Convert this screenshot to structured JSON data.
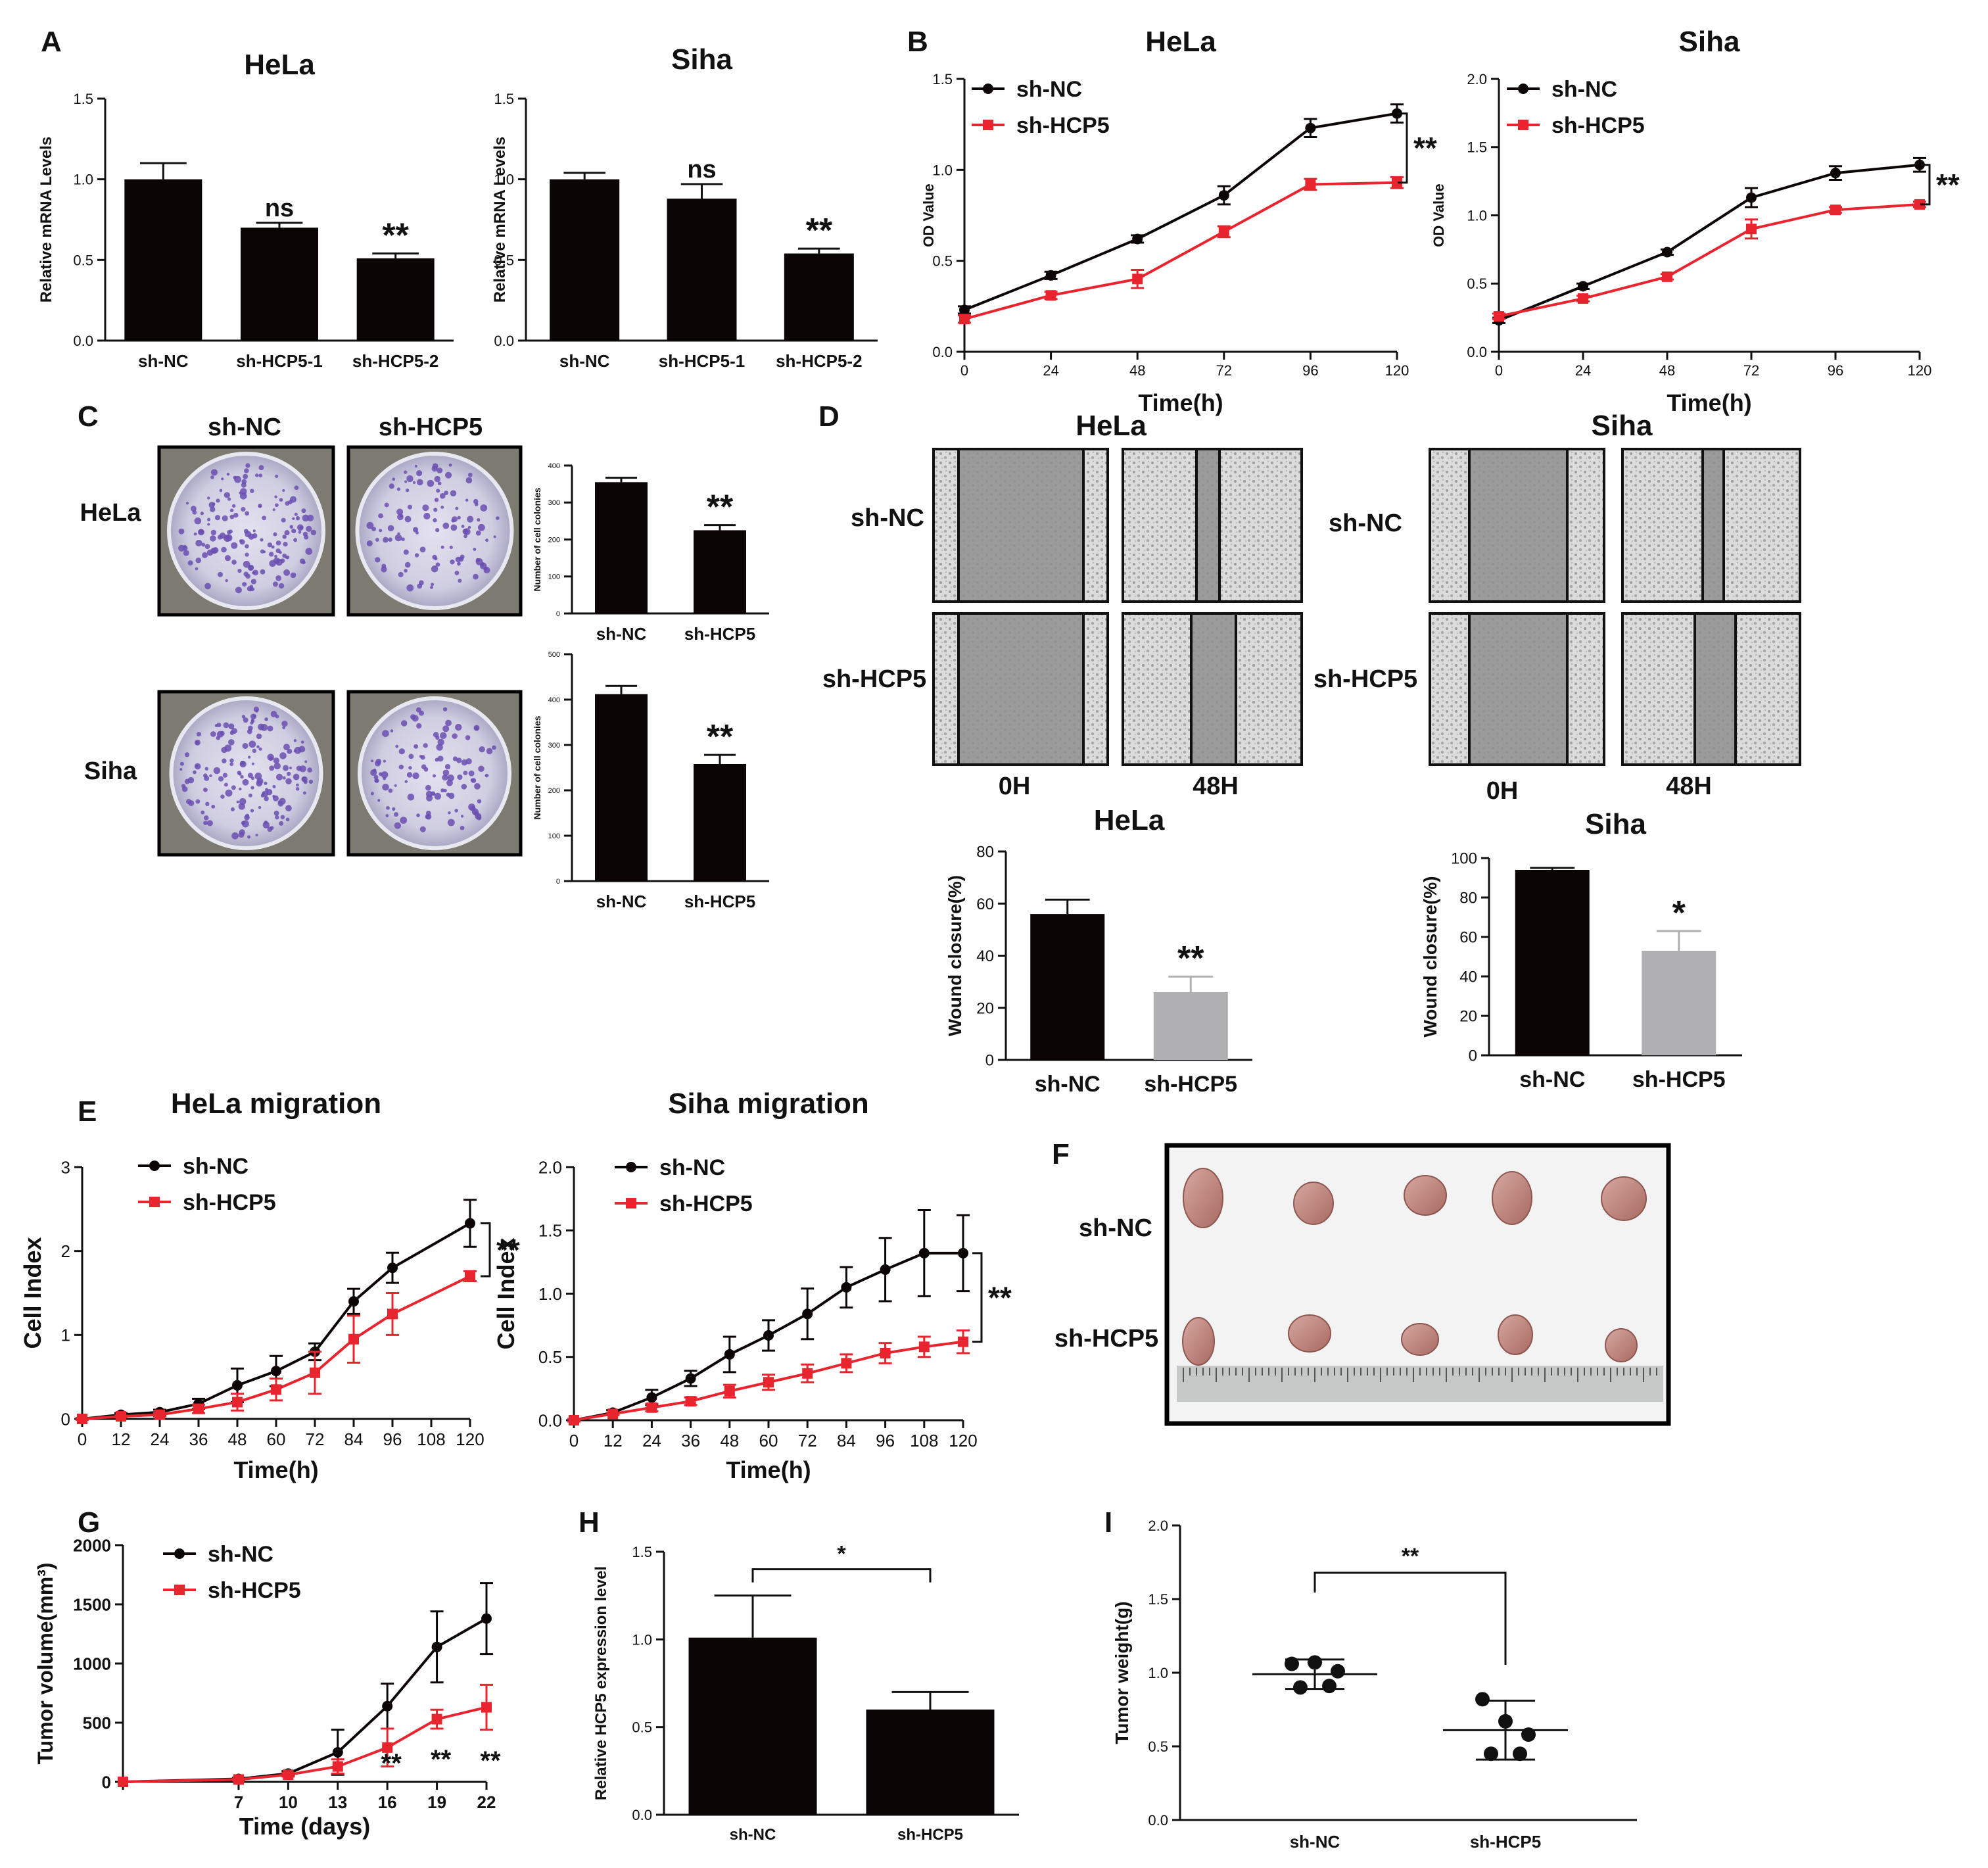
{
  "colors": {
    "black": "#0b0505",
    "red": "#e8242e",
    "gray": "#b0b0b2",
    "purple": "#6a4fb0",
    "dish": "#d9dae6",
    "tissue": "#c08a84"
  },
  "panel_labels": [
    "A",
    "B",
    "C",
    "D",
    "E",
    "F",
    "G",
    "H",
    "I"
  ],
  "chart_data": [
    {
      "id": "A1",
      "type": "bar",
      "title": "HeLa",
      "ylabel": "Relative mRNA Levels",
      "ylim": [
        0,
        1.5
      ],
      "yticks": [
        "0.0",
        "0.5",
        "1.0",
        "1.5"
      ],
      "categories": [
        "sh-NC",
        "sh-HCP5-1",
        "sh-HCP5-2"
      ],
      "values": [
        1.0,
        0.7,
        0.51
      ],
      "errors": [
        0.1,
        0.03,
        0.03
      ],
      "sig": [
        "",
        "ns",
        "**"
      ]
    },
    {
      "id": "A2",
      "type": "bar",
      "title": "Siha",
      "ylabel": "Relative mRNA Levels",
      "ylim": [
        0,
        1.5
      ],
      "yticks": [
        "0.0",
        "0.5",
        "1.0",
        "1.5"
      ],
      "categories": [
        "sh-NC",
        "sh-HCP5-1",
        "sh-HCP5-2"
      ],
      "values": [
        1.0,
        0.88,
        0.54
      ],
      "errors": [
        0.04,
        0.09,
        0.03
      ],
      "sig": [
        "",
        "ns",
        "**"
      ]
    },
    {
      "id": "B1",
      "type": "line",
      "title": "HeLa",
      "ylabel": "OD Value",
      "xlabel": "Time(h)",
      "ylim": [
        0,
        1.5
      ],
      "yticks": [
        "0.0",
        "0.5",
        "1.0",
        "1.5"
      ],
      "x": [
        0,
        24,
        48,
        72,
        96,
        120
      ],
      "xticks": [
        "0",
        "24",
        "48",
        "72",
        "96",
        "120"
      ],
      "bracket": "**",
      "legend": [
        "sh-NC",
        "sh-HCP5"
      ],
      "series": [
        {
          "name": "sh-NC",
          "values": [
            0.23,
            0.42,
            0.62,
            0.86,
            1.23,
            1.31
          ],
          "errors": [
            0.02,
            0.02,
            0.02,
            0.05,
            0.05,
            0.05
          ]
        },
        {
          "name": "sh-HCP5",
          "values": [
            0.18,
            0.31,
            0.4,
            0.66,
            0.92,
            0.93
          ],
          "errors": [
            0.02,
            0.02,
            0.05,
            0.03,
            0.03,
            0.03
          ]
        }
      ]
    },
    {
      "id": "B2",
      "type": "line",
      "title": "Siha",
      "ylabel": "OD Value",
      "xlabel": "Time(h)",
      "ylim": [
        0,
        2.0
      ],
      "yticks": [
        "0.0",
        "0.5",
        "1.0",
        "1.5",
        "2.0"
      ],
      "x": [
        0,
        24,
        48,
        72,
        96,
        120
      ],
      "xticks": [
        "0",
        "24",
        "48",
        "72",
        "96",
        "120"
      ],
      "bracket": "**",
      "legend": [
        "sh-NC",
        "sh-HCP5"
      ],
      "series": [
        {
          "name": "sh-NC",
          "values": [
            0.23,
            0.48,
            0.73,
            1.13,
            1.31,
            1.37
          ],
          "errors": [
            0.02,
            0.02,
            0.02,
            0.07,
            0.05,
            0.05
          ]
        },
        {
          "name": "sh-HCP5",
          "values": [
            0.26,
            0.39,
            0.55,
            0.9,
            1.04,
            1.08
          ],
          "errors": [
            0.02,
            0.02,
            0.02,
            0.07,
            0.02,
            0.02
          ]
        }
      ]
    },
    {
      "id": "C1",
      "type": "bar",
      "ylabel": "Number of cell colonies",
      "ylim": [
        0,
        400
      ],
      "yticks": [
        "0",
        "100",
        "200",
        "300",
        "400"
      ],
      "categories": [
        "sh-NC",
        "sh-HCP5"
      ],
      "values": [
        355,
        225
      ],
      "errors": [
        12,
        14
      ],
      "sig": [
        "",
        "**"
      ]
    },
    {
      "id": "C2",
      "type": "bar",
      "ylabel": "Number of cell colonies",
      "ylim": [
        0,
        500
      ],
      "yticks": [
        "0",
        "100",
        "200",
        "300",
        "400",
        "500"
      ],
      "categories": [
        "sh-NC",
        "sh-HCP5"
      ],
      "values": [
        412,
        258
      ],
      "errors": [
        18,
        20
      ],
      "sig": [
        "",
        "**"
      ]
    },
    {
      "id": "D1",
      "type": "bar",
      "title": "HeLa",
      "ylabel": "Wound closure(%)",
      "ylim": [
        0,
        80
      ],
      "yticks": [
        "0",
        "20",
        "40",
        "60",
        "80"
      ],
      "categories": [
        "sh-NC",
        "sh-HCP5"
      ],
      "values": [
        56,
        26
      ],
      "errors": [
        5.5,
        6
      ],
      "sig": [
        "",
        "**"
      ]
    },
    {
      "id": "D2",
      "type": "bar",
      "title": "Siha",
      "ylabel": "Wound closure(%)",
      "ylim": [
        0,
        100
      ],
      "yticks": [
        "0",
        "20",
        "40",
        "60",
        "80",
        "100"
      ],
      "categories": [
        "sh-NC",
        "sh-HCP5"
      ],
      "values": [
        94,
        53
      ],
      "errors": [
        1,
        10
      ],
      "sig": [
        "",
        "*"
      ]
    },
    {
      "id": "E1",
      "type": "line",
      "title": "HeLa migration",
      "ylabel": "Cell Index",
      "xlabel": "Time(h)",
      "ylim": [
        0,
        3
      ],
      "yticks": [
        "0",
        "1",
        "2",
        "3"
      ],
      "x": [
        0,
        12,
        24,
        36,
        48,
        60,
        72,
        84,
        96,
        108,
        120
      ],
      "xticks": [
        "0",
        "12",
        "24",
        "36",
        "48",
        "60",
        "72",
        "84",
        "96",
        "108",
        "120"
      ],
      "bracket": "**",
      "legend": [
        "sh-NC",
        "sh-HCP5"
      ],
      "series": [
        {
          "name": "sh-NC",
          "values": [
            0,
            0.05,
            0.08,
            0.18,
            0.4,
            0.57,
            0.8,
            1.4,
            1.8,
            null,
            2.33
          ],
          "errors": [
            0.01,
            0.02,
            0.03,
            0.06,
            0.2,
            0.18,
            0.1,
            0.15,
            0.18,
            null,
            0.28
          ]
        },
        {
          "name": "sh-HCP5",
          "values": [
            0,
            0.03,
            0.05,
            0.12,
            0.2,
            0.35,
            0.55,
            0.95,
            1.25,
            null,
            1.7
          ],
          "errors": [
            0.01,
            0.01,
            0.02,
            0.05,
            0.1,
            0.13,
            0.25,
            0.28,
            0.25,
            null,
            0.06
          ]
        }
      ]
    },
    {
      "id": "E2",
      "type": "line",
      "title": "Siha migration",
      "ylabel": "Cell Index",
      "xlabel": "Time(h)",
      "ylim": [
        0,
        2.0
      ],
      "yticks": [
        "0.0",
        "0.5",
        "1.0",
        "1.5",
        "2.0"
      ],
      "x": [
        0,
        12,
        24,
        36,
        48,
        60,
        72,
        84,
        96,
        108,
        120
      ],
      "xticks": [
        "0",
        "12",
        "24",
        "36",
        "48",
        "60",
        "72",
        "84",
        "96",
        "108",
        "120"
      ],
      "bracket": "**",
      "legend": [
        "sh-NC",
        "sh-HCP5"
      ],
      "series": [
        {
          "name": "sh-NC",
          "values": [
            0,
            0.06,
            0.18,
            0.33,
            0.52,
            0.67,
            0.84,
            1.05,
            1.19,
            1.32,
            1.32
          ],
          "errors": [
            0.01,
            0.02,
            0.06,
            0.06,
            0.14,
            0.12,
            0.2,
            0.16,
            0.25,
            0.34,
            0.3
          ]
        },
        {
          "name": "sh-HCP5",
          "values": [
            0,
            0.05,
            0.1,
            0.15,
            0.23,
            0.3,
            0.37,
            0.45,
            0.53,
            0.58,
            0.62
          ],
          "errors": [
            0.01,
            0.01,
            0.03,
            0.03,
            0.05,
            0.06,
            0.07,
            0.07,
            0.08,
            0.08,
            0.09
          ]
        }
      ]
    },
    {
      "id": "G",
      "type": "line",
      "ylabel": "Tumor volume(mm³)",
      "xlabel": "Time (days)",
      "ylim": [
        0,
        2000
      ],
      "yticks": [
        "0",
        "500",
        "1000",
        "1500",
        "2000"
      ],
      "x": [
        0,
        7,
        10,
        13,
        16,
        19,
        22
      ],
      "xticks": [
        "",
        "7",
        "10",
        "13",
        "16",
        "19",
        "22"
      ],
      "legend": [
        "sh-NC",
        "sh-HCP5"
      ],
      "point_sig": [
        {
          "x": 16,
          "label": "**"
        },
        {
          "x": 19,
          "label": "**"
        },
        {
          "x": 22,
          "label": "**"
        }
      ],
      "series": [
        {
          "name": "sh-NC",
          "values": [
            0,
            25,
            70,
            250,
            640,
            1140,
            1380
          ],
          "errors": [
            0,
            10,
            20,
            190,
            190,
            300,
            300
          ]
        },
        {
          "name": "sh-HCP5",
          "values": [
            0,
            20,
            60,
            130,
            290,
            530,
            630
          ],
          "errors": [
            0,
            8,
            15,
            60,
            160,
            80,
            190
          ]
        }
      ]
    },
    {
      "id": "H",
      "type": "bar",
      "ylabel": "Relative HCP5 expression level",
      "ylim": [
        0,
        1.5
      ],
      "yticks": [
        "0.0",
        "0.5",
        "1.0",
        "1.5"
      ],
      "categories": [
        "sh-NC",
        "sh-HCP5"
      ],
      "values": [
        1.01,
        0.6
      ],
      "errors": [
        0.24,
        0.1
      ],
      "sig_bracket": "*"
    },
    {
      "id": "I",
      "type": "scatter",
      "ylabel": "Tumor weight(g)",
      "ylim": [
        0,
        2.0
      ],
      "yticks": [
        "0.0",
        "0.5",
        "1.0",
        "1.5",
        "2.0"
      ],
      "categories": [
        "sh-NC",
        "sh-HCP5"
      ],
      "means": [
        0.99,
        0.61
      ],
      "sds": [
        0.1,
        0.2
      ],
      "points": [
        [
          1.06,
          1.07,
          1.01,
          0.9,
          0.91
        ],
        [
          0.82,
          0.67,
          0.58,
          0.45,
          0.45
        ]
      ],
      "sig_bracket": "**"
    }
  ],
  "C_images": {
    "cols": [
      "sh-NC",
      "sh-HCP5"
    ],
    "rows": [
      "HeLa",
      "Siha"
    ]
  },
  "D_images": {
    "titles": [
      "HeLa",
      "Siha"
    ],
    "rows": [
      "sh-NC",
      "sh-HCP5"
    ],
    "cols": [
      "0H",
      "48H"
    ]
  },
  "F_photo": {
    "rows": [
      "sh-NC",
      "sh-HCP5"
    ]
  }
}
